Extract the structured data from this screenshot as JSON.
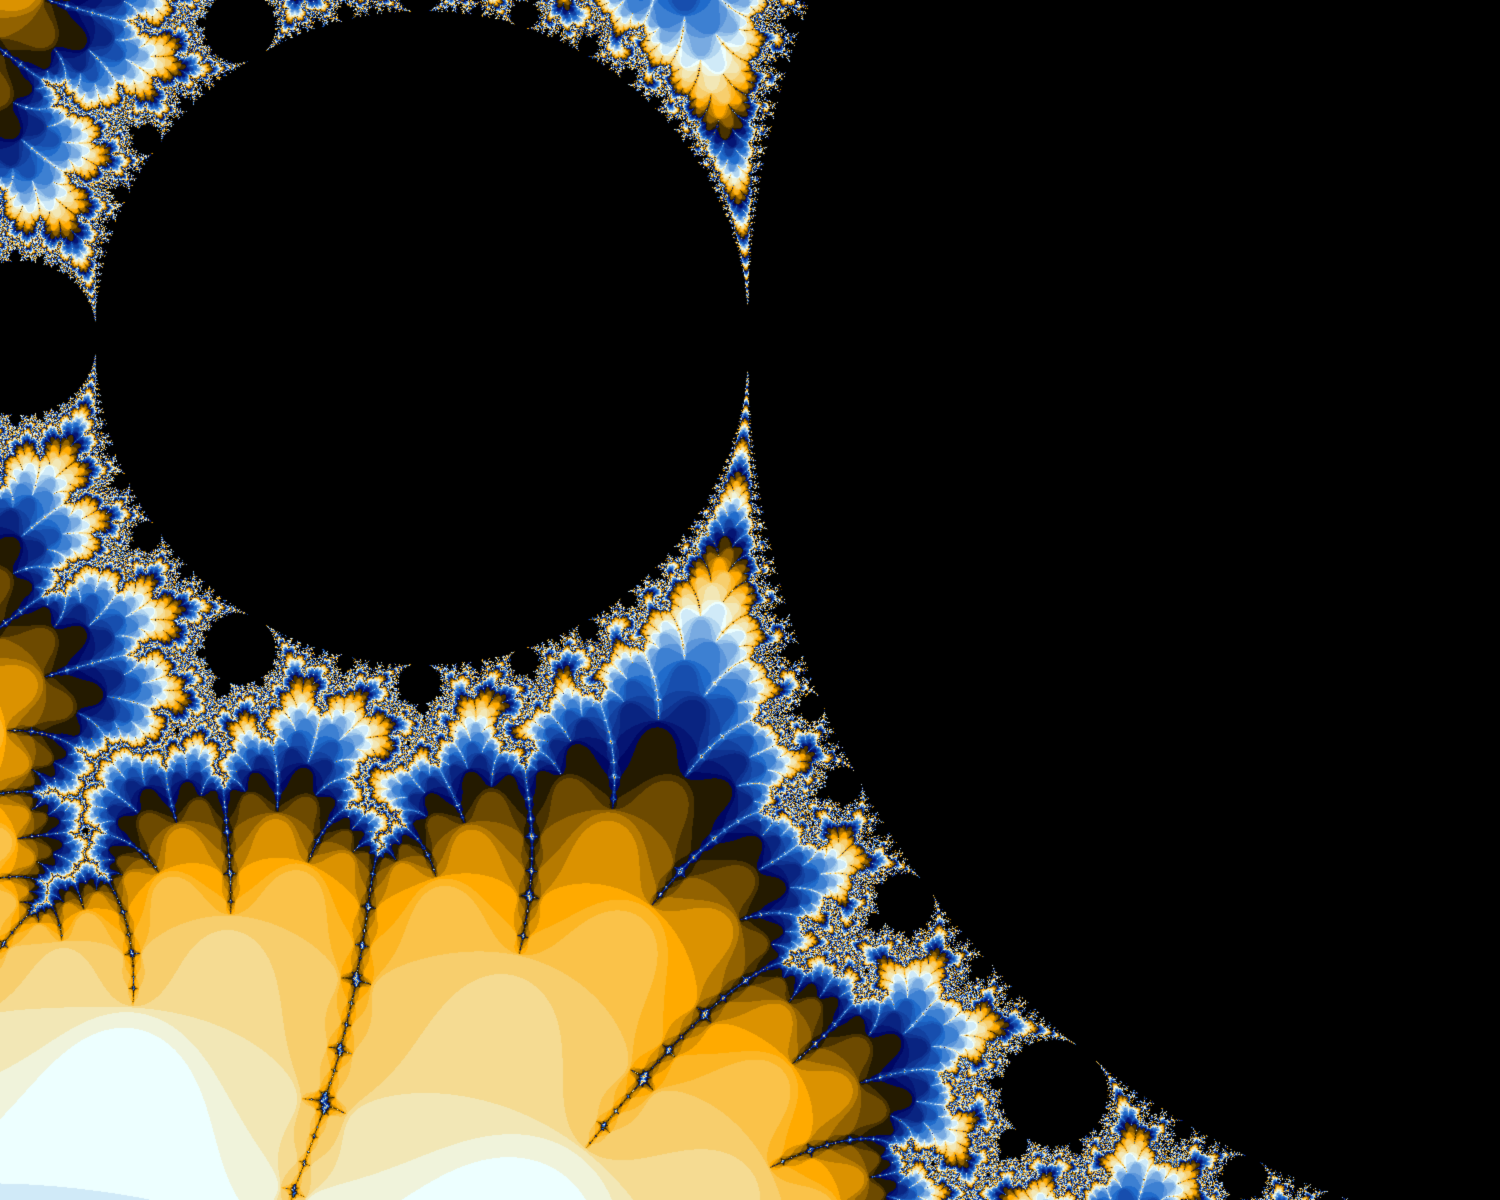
{
  "image": {
    "subject": "mandelbrot-set-spike",
    "background": "#000000",
    "palette": [
      "#000764",
      "#206bcb",
      "#edffff",
      "#ffaa00",
      "#ffd56a",
      "#a05a00",
      "#3c1e10",
      "#0a0a40",
      "#1a4fae",
      "#7fb0e6"
    ],
    "interior_color": "#000000"
  }
}
